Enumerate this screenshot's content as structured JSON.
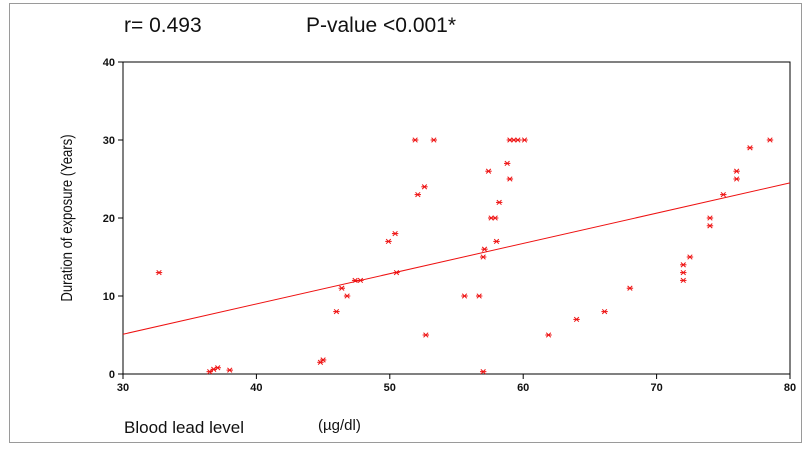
{
  "annotations": {
    "r_text": "r= 0.493",
    "p_text": "P-value <0.001*"
  },
  "chart_data": {
    "type": "scatter",
    "xlabel": "Blood lead level",
    "xlabel_unit": "(µg/dl)",
    "ylabel": "Duration of exposure  (Years)",
    "xlim": [
      30,
      80
    ],
    "ylim": [
      0,
      40
    ],
    "x_ticks": [
      30,
      40,
      50,
      60,
      70,
      80
    ],
    "y_ticks": [
      0,
      10,
      20,
      30,
      40
    ],
    "grid": false,
    "marker": "star",
    "color": "#ee1111",
    "points": [
      [
        32.7,
        13
      ],
      [
        36.5,
        0.3
      ],
      [
        36.8,
        0.6
      ],
      [
        37.1,
        0.8
      ],
      [
        38,
        0.5
      ],
      [
        44.8,
        1.5
      ],
      [
        45,
        1.8
      ],
      [
        46,
        8
      ],
      [
        46.4,
        11
      ],
      [
        46.8,
        10
      ],
      [
        47.4,
        12
      ],
      [
        47.8,
        12
      ],
      [
        49.9,
        17
      ],
      [
        50.4,
        18
      ],
      [
        50.5,
        13
      ],
      [
        51.9,
        30
      ],
      [
        52.1,
        23
      ],
      [
        52.6,
        24
      ],
      [
        52.7,
        5
      ],
      [
        53.3,
        30
      ],
      [
        55.6,
        10
      ],
      [
        56.7,
        10
      ],
      [
        57,
        0.3
      ],
      [
        57,
        15
      ],
      [
        57.1,
        16
      ],
      [
        57.4,
        26
      ],
      [
        57.6,
        20
      ],
      [
        57.9,
        20
      ],
      [
        58,
        17
      ],
      [
        58.2,
        22
      ],
      [
        58.8,
        27
      ],
      [
        59,
        25
      ],
      [
        59,
        30
      ],
      [
        59.3,
        30
      ],
      [
        59.6,
        30
      ],
      [
        60.1,
        30
      ],
      [
        61.9,
        5
      ],
      [
        64,
        7
      ],
      [
        66.1,
        8
      ],
      [
        68,
        11
      ],
      [
        72,
        12
      ],
      [
        72,
        13
      ],
      [
        72,
        14
      ],
      [
        72.5,
        15
      ],
      [
        74,
        19
      ],
      [
        74,
        20
      ],
      [
        75,
        23
      ],
      [
        76,
        25
      ],
      [
        76,
        26
      ],
      [
        77,
        29
      ],
      [
        78.5,
        30
      ]
    ],
    "trendline": {
      "from": [
        30,
        5.1
      ],
      "to": [
        80,
        24.5
      ]
    }
  }
}
